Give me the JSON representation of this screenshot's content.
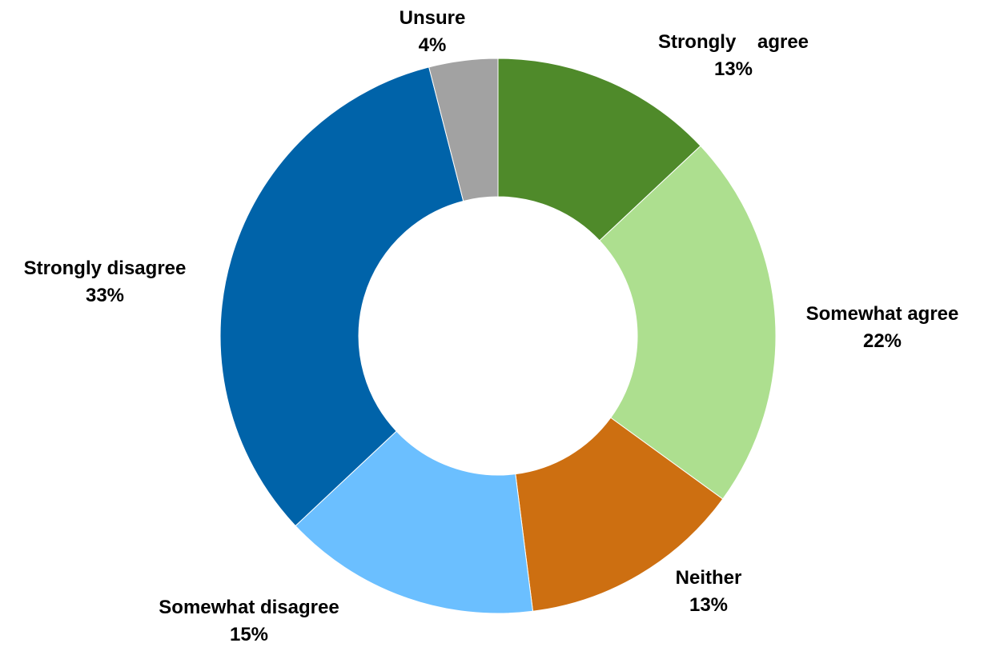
{
  "chart_data": {
    "type": "pie",
    "variant": "donut",
    "title": "",
    "legend": "none",
    "slices": [
      {
        "label": "Strongly    agree",
        "value": 13,
        "value_label": "13%",
        "color": "#4f8a2a"
      },
      {
        "label": "Somewhat agree",
        "value": 22,
        "value_label": "22%",
        "color": "#addf8f"
      },
      {
        "label": "Neither",
        "value": 13,
        "value_label": "13%",
        "color": "#cd6f11"
      },
      {
        "label": "Somewhat disagree",
        "value": 15,
        "value_label": "15%",
        "color": "#6bbfff"
      },
      {
        "label": "Strongly disagree",
        "value": 33,
        "value_label": "33%",
        "color": "#0063a9"
      },
      {
        "label": "Unsure",
        "value": 4,
        "value_label": "4%",
        "color": "#a2a2a2"
      }
    ]
  }
}
